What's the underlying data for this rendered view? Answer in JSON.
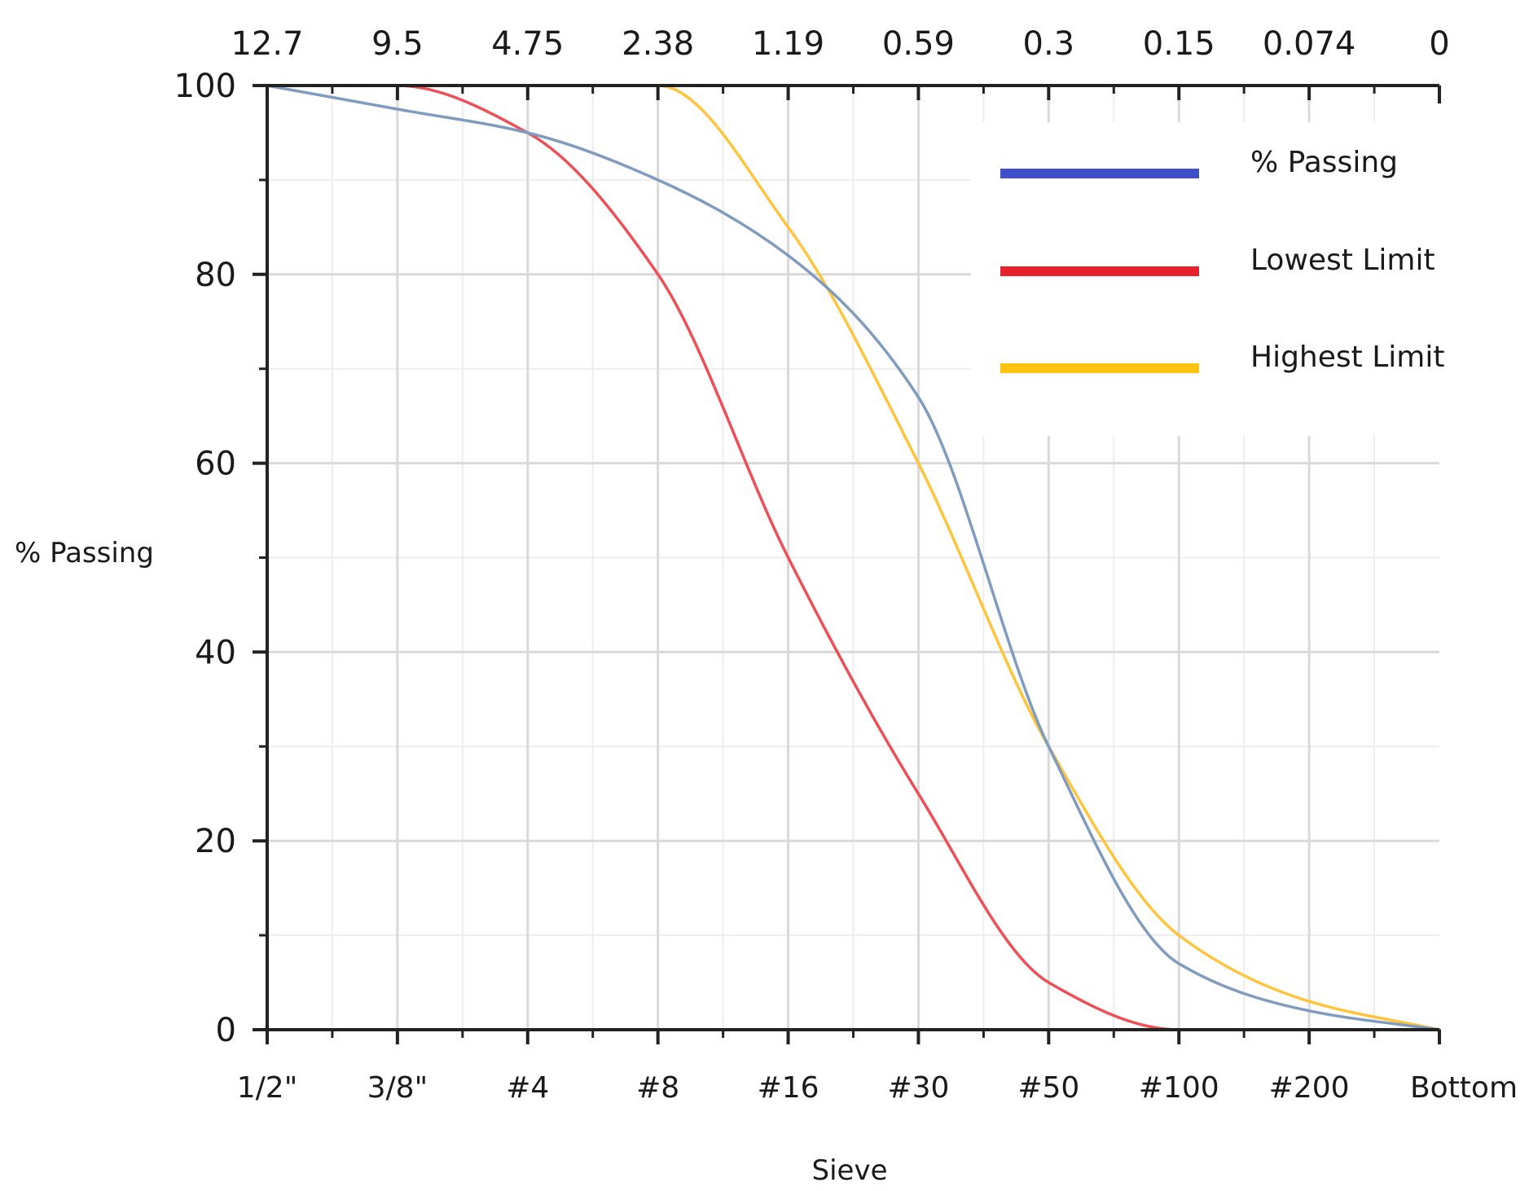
{
  "chart_data": {
    "type": "line",
    "xlabel": "Sieve",
    "ylabel": "% Passing",
    "ylim": [
      0,
      100
    ],
    "yticks": [
      0,
      20,
      40,
      60,
      80,
      100
    ],
    "categories": [
      "1/2\"",
      "3/8\"",
      "#4",
      "#8",
      "#16",
      "#30",
      "#50",
      "#100",
      "#200",
      "Bottom"
    ],
    "sizes_mm": [
      "12.7",
      "9.5",
      "4.75",
      "2.38",
      "1.19",
      "0.59",
      "0.3",
      "0.15",
      "0.074",
      "0"
    ],
    "grid": true,
    "legend_position": "top-right",
    "series": [
      {
        "name": "% Passing",
        "legend_color": "#3F4FCB",
        "line_color": "#7F9CC0",
        "values": [
          100,
          97.5,
          95,
          90,
          82,
          67,
          30,
          7,
          2,
          0
        ]
      },
      {
        "name": "Lowest Limit",
        "legend_color": "#E8202A",
        "line_color": "#EE4E55",
        "values": [
          100,
          100,
          95,
          80,
          50,
          25,
          5,
          0,
          0,
          0
        ]
      },
      {
        "name": "Highest Limit",
        "legend_color": "#FFC20E",
        "line_color": "#FFC43C",
        "values": [
          100,
          100,
          100,
          100,
          85,
          60,
          30,
          10,
          3,
          0
        ]
      }
    ]
  }
}
